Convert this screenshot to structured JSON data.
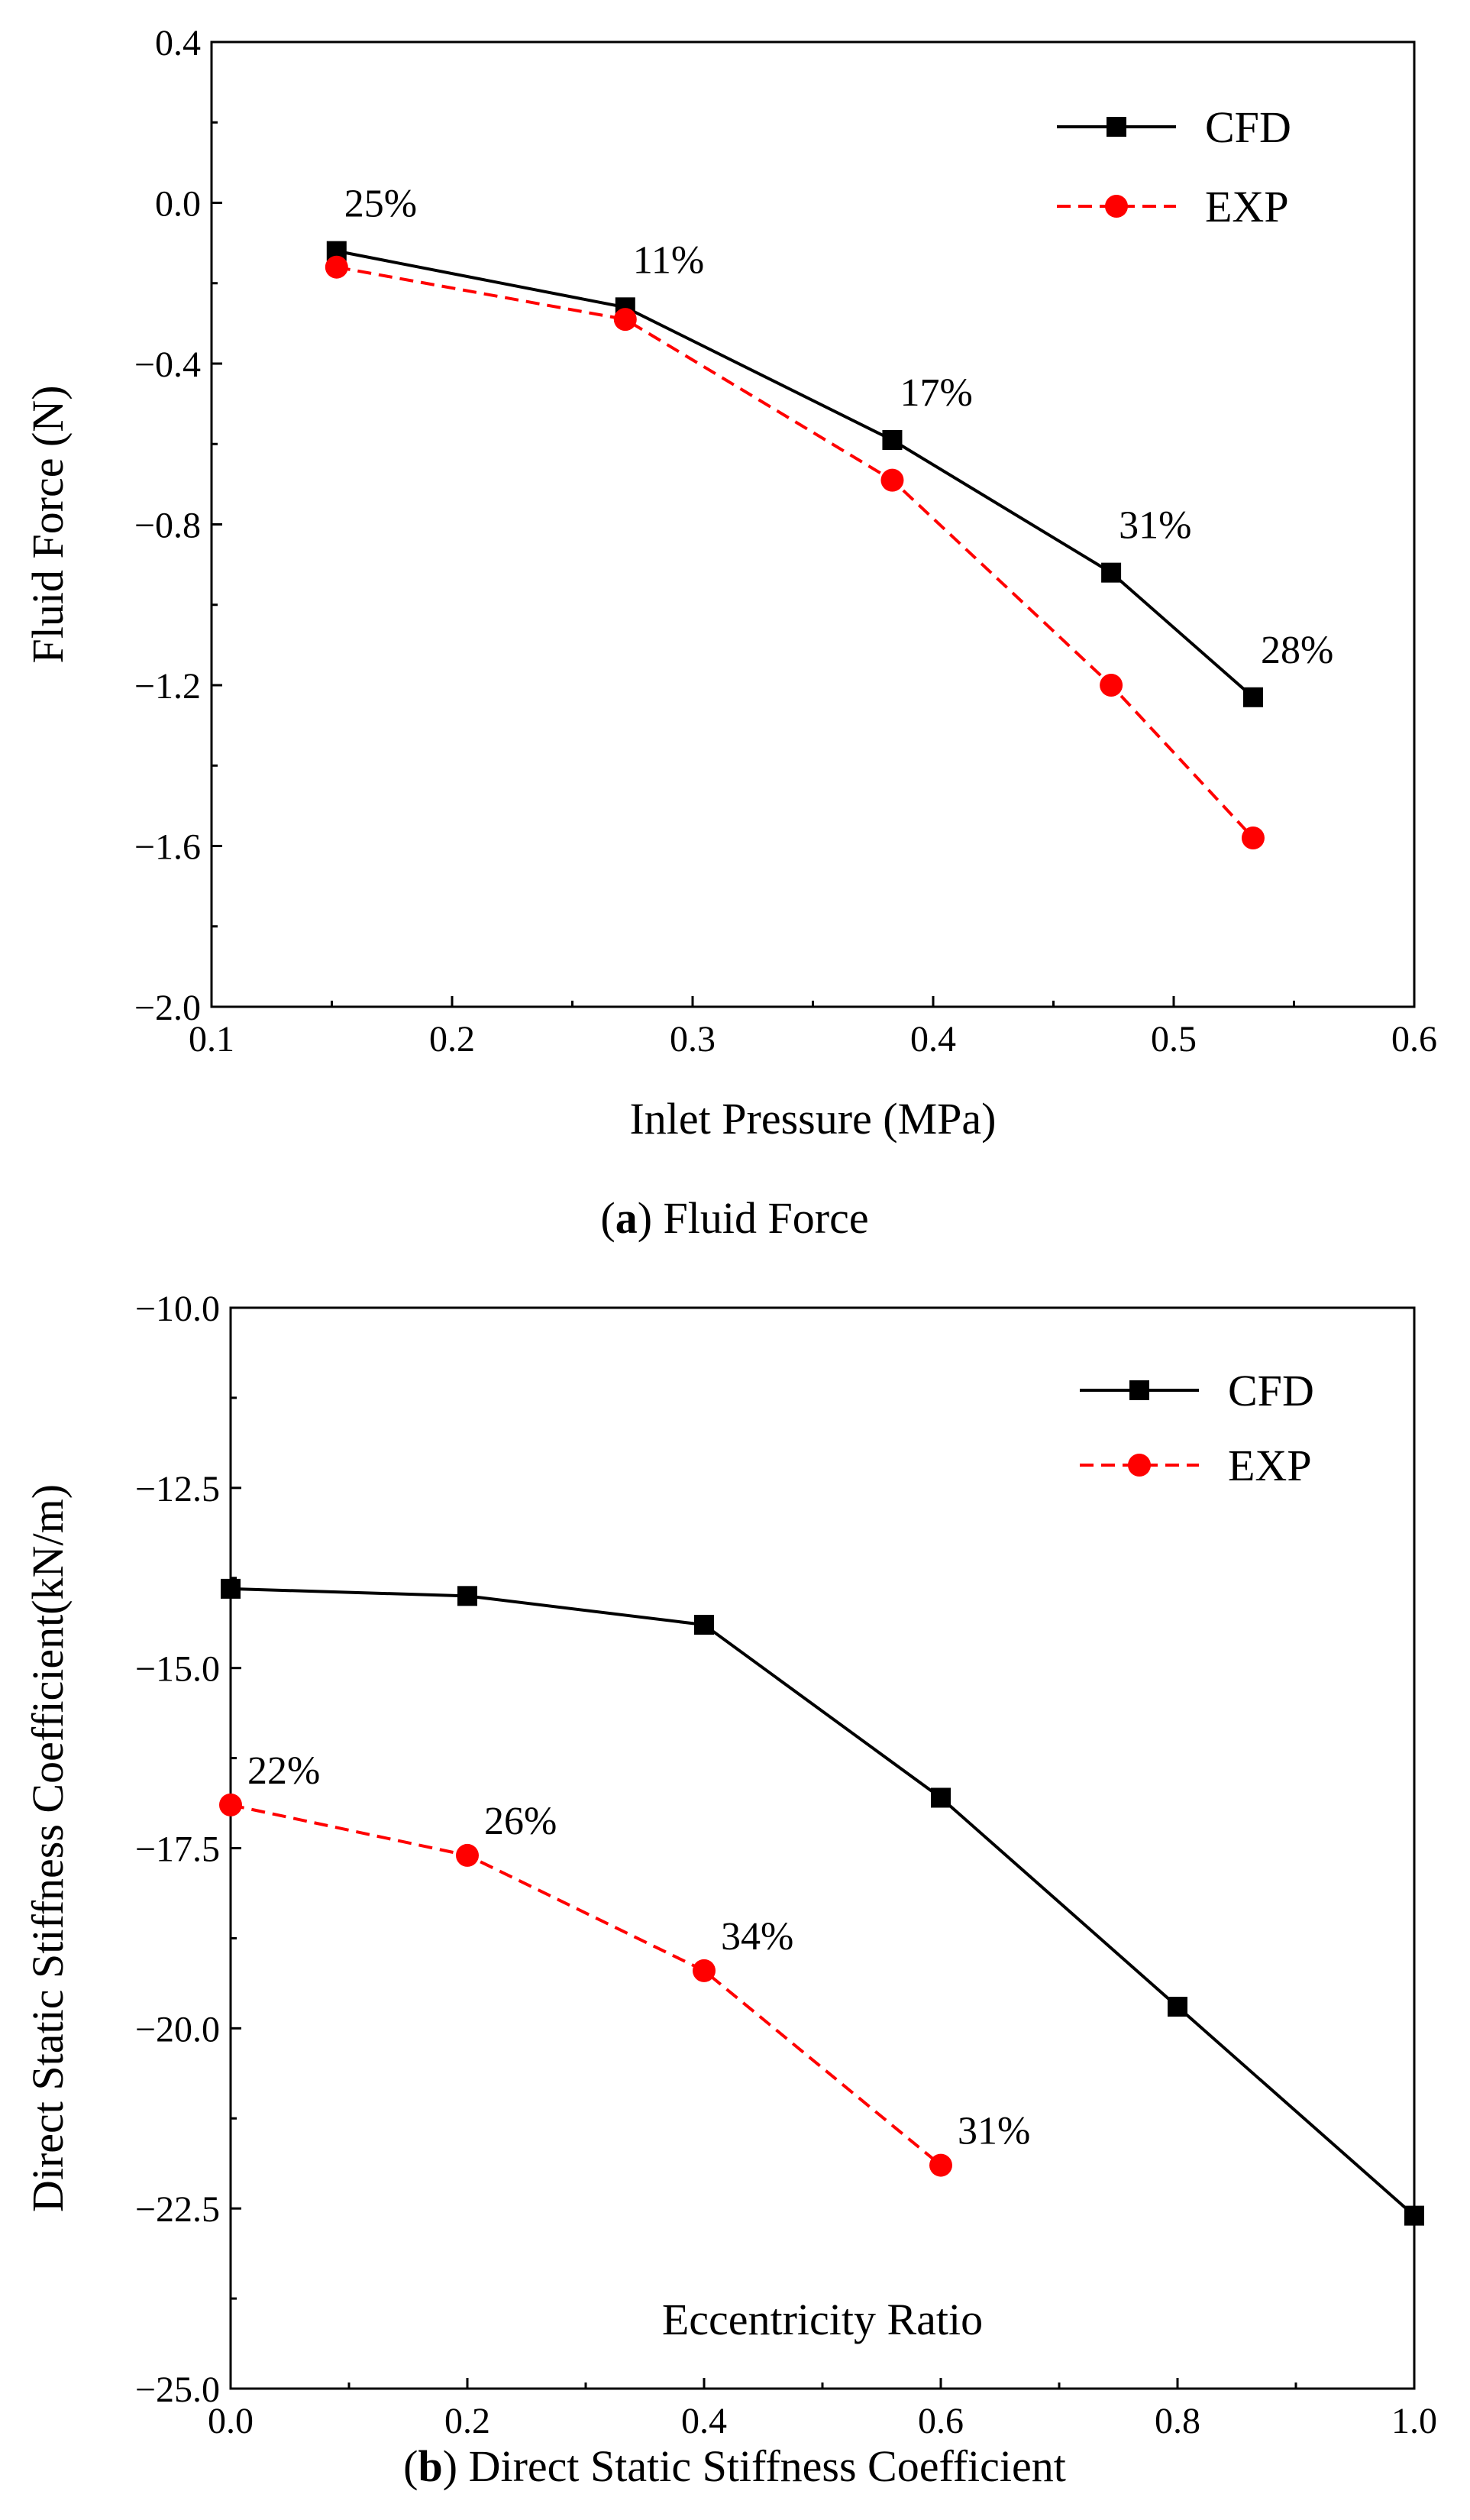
{
  "chart_data": [
    {
      "type": "line",
      "panel": "a",
      "caption_label": "a",
      "caption_text": "Fluid Force",
      "xlabel": "Inlet Pressure (MPa)",
      "ylabel": "Fluid Force (N)",
      "xlim": [
        0.1,
        0.6
      ],
      "ylim": [
        -2.0,
        0.4
      ],
      "xticks": [
        0.1,
        0.2,
        0.3,
        0.4,
        0.5,
        0.6
      ],
      "xtick_labels": [
        "0.1",
        "0.2",
        "0.3",
        "0.4",
        "0.5",
        "0.6"
      ],
      "yticks": [
        0.4,
        0.0,
        -0.4,
        -0.8,
        -1.2,
        -1.6,
        -2.0
      ],
      "ytick_labels": [
        "0.4",
        "0.0",
        "−0.4",
        "−0.8",
        "−1.2",
        "−1.6",
        "−2.0"
      ],
      "legend_position": "top-right",
      "series": [
        {
          "name": "CFD",
          "color": "#000000",
          "marker": "square",
          "dash": "solid",
          "x": [
            0.152,
            0.272,
            0.383,
            0.474,
            0.533
          ],
          "y": [
            -0.12,
            -0.26,
            -0.59,
            -0.92,
            -1.23
          ]
        },
        {
          "name": "EXP",
          "color": "#ff0000",
          "marker": "circle",
          "dash": "dashed",
          "x": [
            0.152,
            0.272,
            0.383,
            0.474,
            0.533
          ],
          "y": [
            -0.16,
            -0.29,
            -0.69,
            -1.2,
            -1.58
          ]
        }
      ],
      "annotations": [
        {
          "text": "25%",
          "x": 0.152,
          "y": -0.12
        },
        {
          "text": "11%",
          "x": 0.272,
          "y": -0.26
        },
        {
          "text": "17%",
          "x": 0.383,
          "y": -0.59
        },
        {
          "text": "31%",
          "x": 0.474,
          "y": -0.92
        },
        {
          "text": "28%",
          "x": 0.533,
          "y": -1.23
        }
      ]
    },
    {
      "type": "line",
      "panel": "b",
      "caption_label": "b",
      "caption_text": "Direct Static Stiffness Coefficient",
      "xlabel": "Eccentricity Ratio",
      "ylabel": "Direct Static Stiffness Coefficient(kN/m)",
      "xlim": [
        0.0,
        1.0
      ],
      "ylim": [
        -25.0,
        -10.0
      ],
      "xticks": [
        0.0,
        0.2,
        0.4,
        0.6,
        0.8,
        1.0
      ],
      "xtick_labels": [
        "0.0",
        "0.2",
        "0.4",
        "0.6",
        "0.8",
        "1.0"
      ],
      "yticks": [
        -10.0,
        -12.5,
        -15.0,
        -17.5,
        -20.0,
        -22.5,
        -25.0
      ],
      "ytick_labels": [
        "−10.0",
        "−12.5",
        "−15.0",
        "−17.5",
        "−20.0",
        "−22.5",
        "−25.0"
      ],
      "legend_position": "top-right",
      "series": [
        {
          "name": "CFD",
          "color": "#000000",
          "marker": "square",
          "dash": "solid",
          "x": [
            0.0,
            0.2,
            0.4,
            0.6,
            0.8,
            1.0
          ],
          "y": [
            -13.9,
            -14.0,
            -14.4,
            -16.8,
            -19.7,
            -22.6
          ]
        },
        {
          "name": "EXP",
          "color": "#ff0000",
          "marker": "circle",
          "dash": "dashed",
          "x": [
            0.0,
            0.2,
            0.4,
            0.6
          ],
          "y": [
            -16.9,
            -17.6,
            -19.2,
            -21.9
          ]
        }
      ],
      "annotations": [
        {
          "text": "22%",
          "x": 0.0,
          "y": -16.9
        },
        {
          "text": "26%",
          "x": 0.2,
          "y": -17.6
        },
        {
          "text": "34%",
          "x": 0.4,
          "y": -19.2
        },
        {
          "text": "31%",
          "x": 0.6,
          "y": -21.9
        }
      ]
    }
  ]
}
